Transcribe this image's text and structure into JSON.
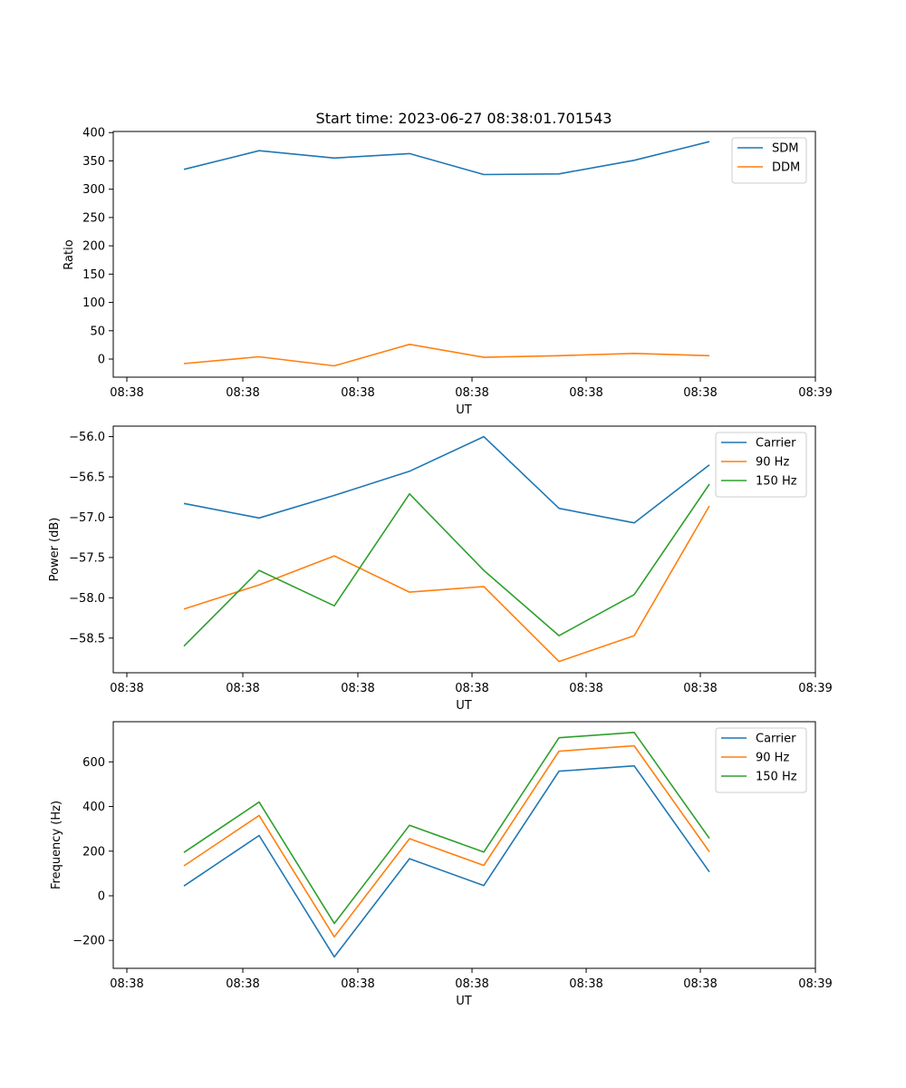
{
  "chart_data": [
    {
      "type": "line",
      "title": "Start time: 2023-06-27 08:38:01.701543",
      "xlabel": "UT",
      "ylabel": "Ratio",
      "x": [
        1,
        2,
        3,
        4,
        5,
        6,
        7,
        8
      ],
      "x_tick_labels": [
        "08:38",
        "08:38",
        "08:38",
        "08:38",
        "08:38",
        "08:38",
        "08:39"
      ],
      "y_ticks": [
        0,
        50,
        100,
        150,
        200,
        250,
        300,
        350,
        400
      ],
      "y_tick_labels": [
        "0",
        "50",
        "100",
        "150",
        "200",
        "250",
        "300",
        "350",
        "400"
      ],
      "ylim": [
        -32,
        402
      ],
      "legend": "top-right",
      "series": [
        {
          "name": "SDM",
          "color": "#1f77b4",
          "values": [
            335,
            368,
            355,
            363,
            326,
            327,
            351,
            384
          ]
        },
        {
          "name": "DDM",
          "color": "#ff7f0e",
          "values": [
            -8,
            4,
            -12,
            26,
            3,
            6,
            10,
            6
          ]
        }
      ]
    },
    {
      "type": "line",
      "title": "",
      "xlabel": "UT",
      "ylabel": "Power (dB)",
      "x": [
        1,
        2,
        3,
        4,
        5,
        6,
        7,
        8
      ],
      "x_tick_labels": [
        "08:38",
        "08:38",
        "08:38",
        "08:38",
        "08:38",
        "08:38",
        "08:39"
      ],
      "y_ticks": [
        -58.5,
        -58.0,
        -57.5,
        -57.0,
        -56.5,
        -56.0
      ],
      "y_tick_labels": [
        "−58.5",
        "−58.0",
        "−57.5",
        "−57.0",
        "−56.5",
        "−56.0"
      ],
      "ylim": [
        -58.93,
        -55.87
      ],
      "legend": "top-right",
      "series": [
        {
          "name": "Carrier",
          "color": "#1f77b4",
          "values": [
            -56.83,
            -57.01,
            -56.73,
            -56.43,
            -56.0,
            -56.89,
            -57.07,
            -56.35
          ]
        },
        {
          "name": "90 Hz",
          "color": "#ff7f0e",
          "values": [
            -58.14,
            -57.84,
            -57.48,
            -57.93,
            -57.86,
            -58.79,
            -58.47,
            -56.86
          ]
        },
        {
          "name": "150 Hz",
          "color": "#2ca02c",
          "values": [
            -58.6,
            -57.66,
            -58.1,
            -56.71,
            -57.66,
            -58.47,
            -57.96,
            -56.59
          ]
        }
      ]
    },
    {
      "type": "line",
      "title": "",
      "xlabel": "UT",
      "ylabel": "Frequency (Hz)",
      "x": [
        1,
        2,
        3,
        4,
        5,
        6,
        7,
        8
      ],
      "x_tick_labels": [
        "08:38",
        "08:38",
        "08:38",
        "08:38",
        "08:38",
        "08:38",
        "08:39"
      ],
      "y_ticks": [
        -200,
        0,
        200,
        400,
        600
      ],
      "y_tick_labels": [
        "−200",
        "0",
        "200",
        "400",
        "600"
      ],
      "ylim": [
        -325,
        780
      ],
      "legend": "top-right",
      "series": [
        {
          "name": "Carrier",
          "color": "#1f77b4",
          "values": [
            44,
            270,
            -274,
            166,
            46,
            558,
            582,
            107
          ]
        },
        {
          "name": "90 Hz",
          "color": "#ff7f0e",
          "values": [
            134,
            360,
            -184,
            256,
            136,
            648,
            672,
            197
          ]
        },
        {
          "name": "150 Hz",
          "color": "#2ca02c",
          "values": [
            194,
            420,
            -124,
            316,
            196,
            708,
            732,
            257
          ]
        }
      ]
    }
  ]
}
